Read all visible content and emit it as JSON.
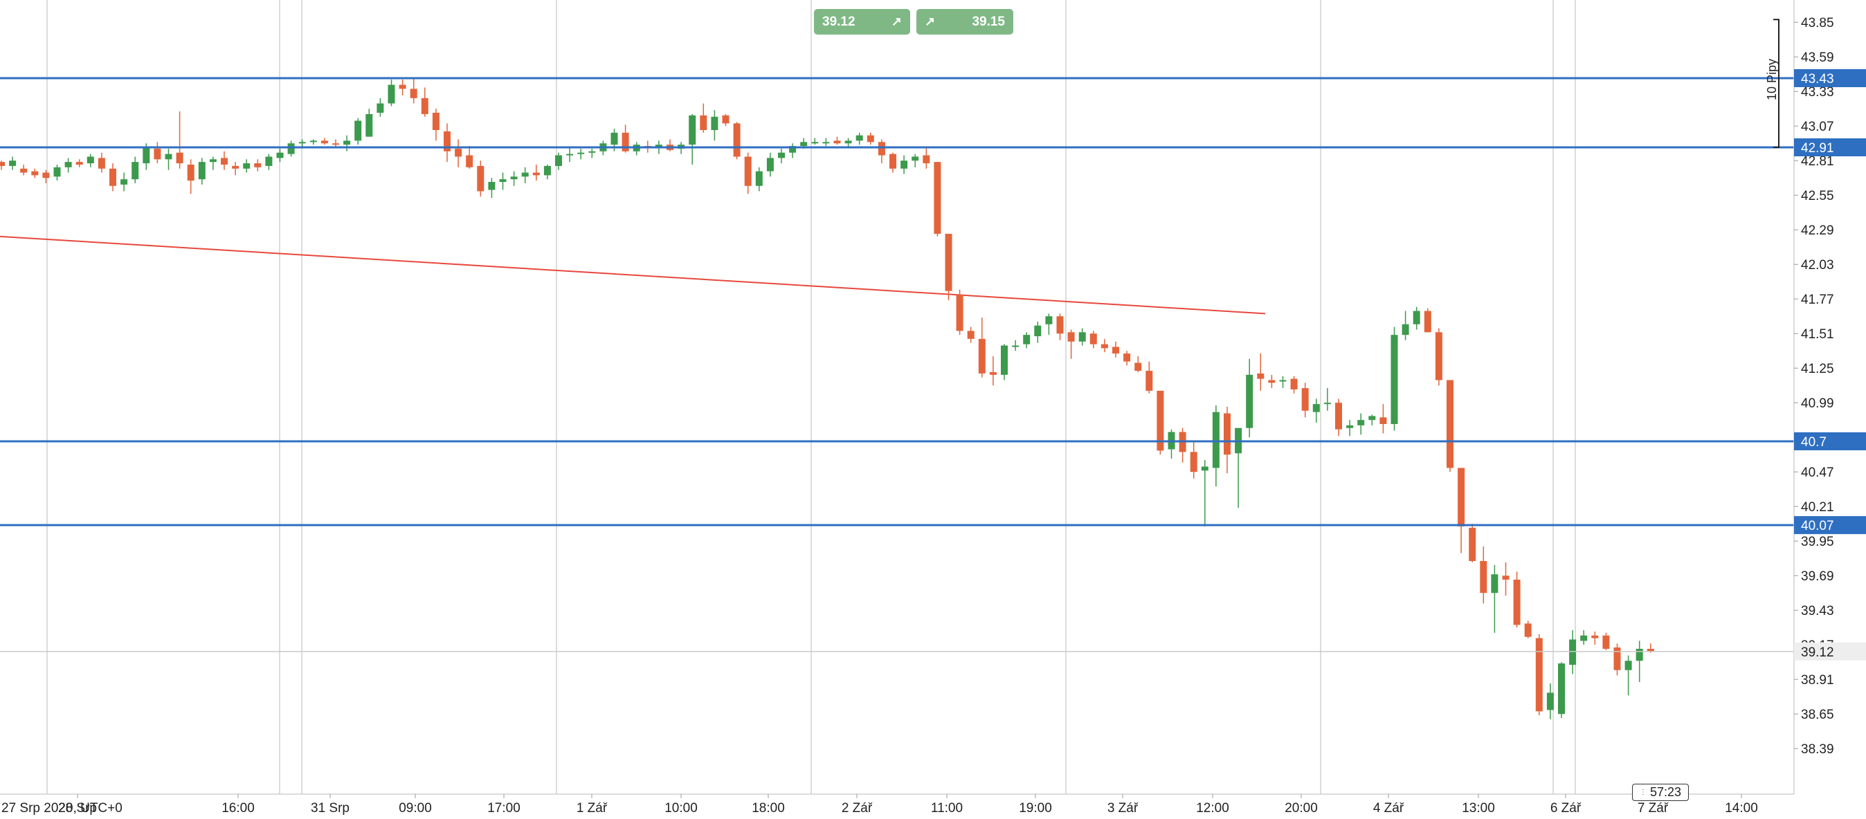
{
  "trade_panel": {
    "sell_price": "39.12",
    "buy_price": "39.15",
    "sell_icon": "arrow-up-right-icon",
    "buy_icon": "arrow-up-right-icon"
  },
  "measure_label": "10 Pipy",
  "candle_timer": "57:23",
  "colors": {
    "up": "#3c9a4c",
    "down": "#e3643b",
    "hline": "#2e6fc1",
    "trendline": "#e8473d",
    "grid": "#d0d0d0"
  },
  "chart_data": {
    "type": "candlestick",
    "symbol_info": "27 Srp 2020, UTC+0",
    "x_ticks": [
      "28 Srp",
      "16:00",
      "31 Srp",
      "09:00",
      "17:00",
      "1 Zář",
      "10:00",
      "18:00",
      "2 Zář",
      "11:00",
      "19:00",
      "3 Zář",
      "12:00",
      "20:00",
      "4 Zář",
      "13:00",
      "6 Zář",
      "7 Zář",
      "14:00"
    ],
    "y_ticks": [
      "43.85",
      "43.59",
      "43.33",
      "43.07",
      "42.81",
      "42.55",
      "42.29",
      "42.03",
      "41.77",
      "41.51",
      "41.25",
      "40.99",
      "40.73",
      "40.47",
      "40.21",
      "39.95",
      "39.69",
      "39.43",
      "39.17",
      "38.91",
      "38.65",
      "38.39"
    ],
    "ylim": [
      38.2,
      43.95
    ],
    "horizontal_lines": [
      {
        "value": 43.43,
        "label": "43.43"
      },
      {
        "value": 42.91,
        "label": "42.91"
      },
      {
        "value": 40.7,
        "label": "40.7"
      },
      {
        "value": 40.07,
        "label": "40.07"
      }
    ],
    "current_price": {
      "value": 39.12,
      "label": "39.12"
    },
    "trendline": {
      "from": {
        "index": 0,
        "price": 42.24
      },
      "to": {
        "index": 117,
        "price": 41.66
      }
    },
    "candles": [
      [
        42.8,
        42.81,
        42.74,
        42.77
      ],
      [
        42.77,
        42.84,
        42.74,
        42.81
      ],
      [
        42.75,
        42.78,
        42.7,
        42.72
      ],
      [
        42.73,
        42.75,
        42.68,
        42.7
      ],
      [
        42.72,
        42.74,
        42.64,
        42.68
      ],
      [
        42.69,
        42.78,
        42.66,
        42.76
      ],
      [
        42.76,
        42.83,
        42.72,
        42.8
      ],
      [
        42.8,
        42.82,
        42.76,
        42.78
      ],
      [
        42.79,
        42.86,
        42.76,
        42.84
      ],
      [
        42.83,
        42.87,
        42.72,
        42.75
      ],
      [
        42.75,
        42.79,
        42.58,
        42.62
      ],
      [
        42.63,
        42.72,
        42.58,
        42.67
      ],
      [
        42.67,
        42.84,
        42.64,
        42.8
      ],
      [
        42.79,
        42.94,
        42.74,
        42.91
      ],
      [
        42.9,
        42.95,
        42.79,
        42.82
      ],
      [
        42.82,
        42.9,
        42.74,
        42.86
      ],
      [
        42.87,
        43.18,
        42.75,
        42.79
      ],
      [
        42.78,
        42.82,
        42.56,
        42.66
      ],
      [
        42.67,
        42.83,
        42.63,
        42.8
      ],
      [
        42.8,
        42.84,
        42.74,
        42.82
      ],
      [
        42.83,
        42.88,
        42.74,
        42.78
      ],
      [
        42.77,
        42.8,
        42.7,
        42.75
      ],
      [
        42.75,
        42.82,
        42.72,
        42.79
      ],
      [
        42.79,
        42.82,
        42.73,
        42.76
      ],
      [
        42.77,
        42.86,
        42.74,
        42.84
      ],
      [
        42.83,
        42.9,
        42.8,
        42.87
      ],
      [
        42.86,
        42.96,
        42.84,
        42.94
      ],
      [
        42.94,
        42.97,
        42.9,
        42.95
      ],
      [
        42.95,
        42.97,
        42.93,
        42.96
      ],
      [
        42.96,
        42.98,
        42.93,
        42.94
      ],
      [
        42.94,
        42.97,
        42.91,
        42.93
      ],
      [
        42.93,
        43.0,
        42.88,
        42.96
      ],
      [
        42.96,
        43.13,
        42.93,
        43.11
      ],
      [
        42.99,
        43.2,
        42.99,
        43.16
      ],
      [
        43.17,
        43.28,
        43.14,
        43.24
      ],
      [
        43.24,
        43.42,
        43.22,
        43.38
      ],
      [
        43.38,
        43.42,
        43.3,
        43.35
      ],
      [
        43.35,
        43.43,
        43.24,
        43.28
      ],
      [
        43.28,
        43.36,
        43.14,
        43.16
      ],
      [
        43.17,
        43.2,
        42.96,
        43.04
      ],
      [
        43.03,
        43.09,
        42.8,
        42.88
      ],
      [
        42.9,
        42.97,
        42.76,
        42.84
      ],
      [
        42.85,
        42.92,
        42.75,
        42.76
      ],
      [
        42.77,
        42.81,
        42.54,
        42.58
      ],
      [
        42.59,
        42.68,
        42.53,
        42.65
      ],
      [
        42.65,
        42.72,
        42.59,
        42.67
      ],
      [
        42.67,
        42.73,
        42.62,
        42.69
      ],
      [
        42.69,
        42.76,
        42.64,
        42.72
      ],
      [
        42.72,
        42.78,
        42.66,
        42.7
      ],
      [
        42.7,
        42.78,
        42.67,
        42.77
      ],
      [
        42.77,
        42.87,
        42.74,
        42.85
      ],
      [
        42.85,
        42.91,
        42.8,
        42.86
      ],
      [
        42.86,
        42.9,
        42.82,
        42.87
      ],
      [
        42.87,
        42.9,
        42.83,
        42.88
      ],
      [
        42.88,
        42.96,
        42.85,
        42.94
      ],
      [
        42.93,
        43.05,
        42.88,
        43.02
      ],
      [
        43.02,
        43.08,
        42.87,
        42.88
      ],
      [
        42.88,
        42.95,
        42.85,
        42.93
      ],
      [
        42.92,
        42.96,
        42.87,
        42.91
      ],
      [
        42.91,
        42.96,
        42.86,
        42.93
      ],
      [
        42.93,
        42.97,
        42.88,
        42.89
      ],
      [
        42.9,
        42.95,
        42.86,
        42.93
      ],
      [
        42.93,
        43.16,
        42.78,
        43.15
      ],
      [
        43.15,
        43.24,
        43.02,
        43.04
      ],
      [
        43.04,
        43.19,
        42.96,
        43.14
      ],
      [
        43.15,
        43.16,
        43.07,
        43.09
      ],
      [
        43.09,
        43.1,
        42.82,
        42.84
      ],
      [
        42.84,
        42.87,
        42.56,
        42.62
      ],
      [
        42.62,
        42.76,
        42.58,
        42.73
      ],
      [
        42.73,
        42.87,
        42.69,
        42.83
      ],
      [
        42.83,
        42.9,
        42.79,
        42.87
      ],
      [
        42.87,
        42.94,
        42.83,
        42.92
      ],
      [
        42.92,
        42.98,
        42.9,
        42.95
      ],
      [
        42.95,
        42.98,
        42.93,
        42.95
      ],
      [
        42.95,
        42.98,
        42.92,
        42.95
      ],
      [
        42.96,
        42.99,
        42.93,
        42.94
      ],
      [
        42.94,
        42.98,
        42.91,
        42.96
      ],
      [
        42.96,
        43.02,
        42.93,
        43.0
      ],
      [
        43.0,
        43.02,
        42.93,
        42.95
      ],
      [
        42.95,
        42.97,
        42.79,
        42.85
      ],
      [
        42.86,
        42.87,
        42.72,
        42.75
      ],
      [
        42.75,
        42.85,
        42.71,
        42.81
      ],
      [
        42.81,
        42.86,
        42.76,
        42.84
      ],
      [
        42.85,
        42.91,
        42.75,
        42.79
      ],
      [
        42.8,
        42.8,
        42.24,
        42.26
      ],
      [
        42.26,
        42.26,
        41.76,
        41.83
      ],
      [
        41.8,
        41.84,
        41.5,
        41.53
      ],
      [
        41.53,
        41.56,
        41.44,
        41.47
      ],
      [
        41.47,
        41.63,
        41.18,
        41.21
      ],
      [
        41.22,
        41.34,
        41.12,
        41.2
      ],
      [
        41.2,
        41.43,
        41.16,
        41.42
      ],
      [
        41.42,
        41.46,
        41.38,
        41.42
      ],
      [
        41.43,
        41.52,
        41.4,
        41.5
      ],
      [
        41.49,
        41.6,
        41.44,
        41.57
      ],
      [
        41.58,
        41.66,
        41.5,
        41.64
      ],
      [
        41.64,
        41.66,
        41.46,
        41.51
      ],
      [
        41.52,
        41.54,
        41.32,
        41.45
      ],
      [
        41.45,
        41.55,
        41.42,
        41.52
      ],
      [
        41.51,
        41.53,
        41.4,
        41.43
      ],
      [
        41.43,
        41.47,
        41.37,
        41.4
      ],
      [
        41.41,
        41.45,
        41.33,
        41.36
      ],
      [
        41.36,
        41.38,
        41.27,
        41.3
      ],
      [
        41.29,
        41.34,
        41.22,
        41.23
      ],
      [
        41.23,
        41.3,
        41.06,
        41.08
      ],
      [
        41.08,
        41.08,
        40.6,
        40.63
      ],
      [
        40.64,
        40.79,
        40.57,
        40.77
      ],
      [
        40.77,
        40.8,
        40.54,
        40.62
      ],
      [
        40.62,
        40.7,
        40.42,
        40.47
      ],
      [
        40.48,
        40.56,
        40.06,
        40.51
      ],
      [
        40.5,
        40.97,
        40.36,
        40.92
      ],
      [
        40.91,
        40.96,
        40.46,
        40.6
      ],
      [
        40.61,
        40.79,
        40.2,
        40.8
      ],
      [
        40.8,
        41.32,
        40.73,
        41.2
      ],
      [
        41.21,
        41.36,
        41.08,
        41.17
      ],
      [
        41.16,
        41.2,
        41.1,
        41.14
      ],
      [
        41.15,
        41.19,
        41.1,
        41.16
      ],
      [
        41.17,
        41.19,
        41.06,
        41.09
      ],
      [
        41.1,
        41.14,
        40.88,
        40.93
      ],
      [
        40.92,
        41.02,
        40.84,
        40.98
      ],
      [
        40.98,
        41.1,
        40.93,
        40.99
      ],
      [
        40.99,
        41.02,
        40.74,
        40.79
      ],
      [
        40.8,
        40.86,
        40.74,
        40.82
      ],
      [
        40.82,
        40.91,
        40.75,
        40.86
      ],
      [
        40.86,
        40.9,
        40.82,
        40.89
      ],
      [
        40.88,
        40.98,
        40.76,
        40.83
      ],
      [
        40.83,
        41.56,
        40.78,
        41.5
      ],
      [
        41.5,
        41.68,
        41.46,
        41.58
      ],
      [
        41.58,
        41.71,
        41.54,
        41.68
      ],
      [
        41.68,
        41.7,
        41.52,
        41.52
      ],
      [
        41.52,
        41.55,
        41.12,
        41.16
      ],
      [
        41.16,
        41.16,
        40.47,
        40.5
      ],
      [
        40.5,
        40.5,
        39.86,
        40.06
      ],
      [
        40.05,
        40.08,
        39.79,
        39.8
      ],
      [
        39.8,
        39.91,
        39.48,
        39.56
      ],
      [
        39.56,
        39.77,
        39.26,
        39.7
      ],
      [
        39.69,
        39.79,
        39.54,
        39.66
      ],
      [
        39.66,
        39.72,
        39.3,
        39.32
      ],
      [
        39.33,
        39.35,
        39.22,
        39.23
      ],
      [
        39.22,
        39.25,
        38.64,
        38.67
      ],
      [
        38.68,
        38.88,
        38.61,
        38.81
      ],
      [
        38.65,
        39.04,
        38.62,
        39.03
      ],
      [
        39.02,
        39.28,
        38.95,
        39.21
      ],
      [
        39.2,
        39.28,
        39.17,
        39.24
      ],
      [
        39.24,
        39.27,
        39.17,
        39.22
      ],
      [
        39.24,
        39.26,
        39.13,
        39.14
      ],
      [
        39.15,
        39.18,
        38.94,
        38.98
      ],
      [
        38.98,
        39.09,
        38.79,
        39.05
      ],
      [
        39.05,
        39.2,
        38.89,
        39.14
      ],
      [
        39.14,
        39.18,
        39.11,
        39.12
      ]
    ]
  }
}
